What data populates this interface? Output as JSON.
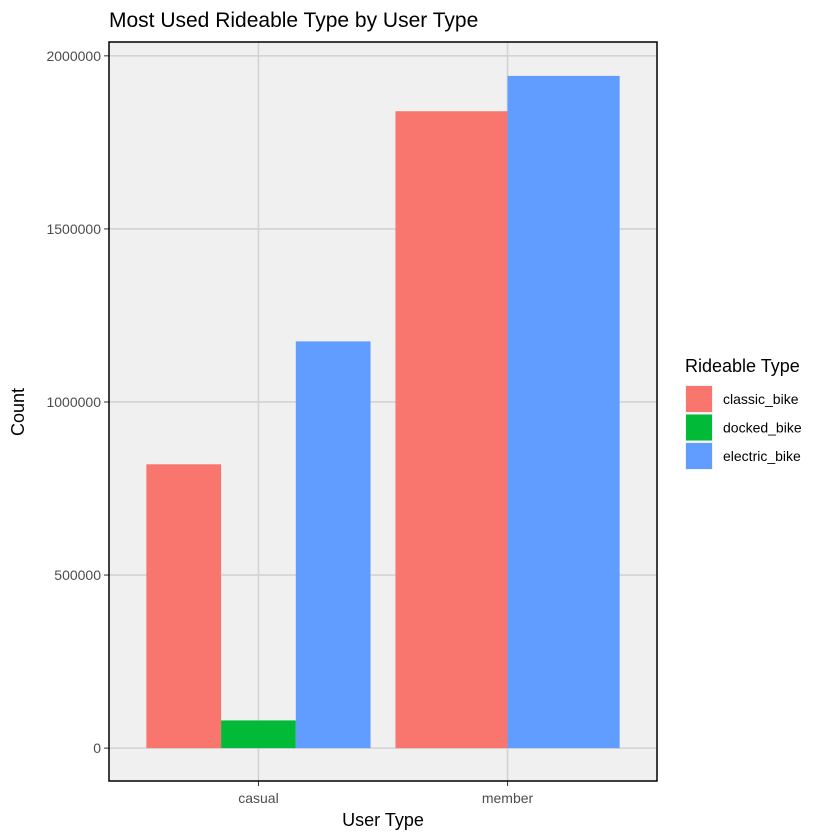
{
  "chart_data": {
    "type": "bar",
    "title": "Most Used Rideable Type by User Type",
    "xlabel": "User Type",
    "ylabel": "Count",
    "categories": [
      "casual",
      "member"
    ],
    "series": [
      {
        "name": "classic_bike",
        "color": "#F8766D",
        "values": [
          820000,
          1840000
        ]
      },
      {
        "name": "docked_bike",
        "color": "#00BA38",
        "values": [
          80000,
          null
        ]
      },
      {
        "name": "electric_bike",
        "color": "#619CFF",
        "values": [
          1175000,
          1942000
        ]
      }
    ],
    "ylim": [
      -95000,
      2040000
    ],
    "yticks": [
      0,
      500000,
      1000000,
      1500000,
      2000000
    ],
    "grid": true,
    "legend": {
      "title": "Rideable Type",
      "position": "right"
    },
    "colors": {
      "panel_background": "#F0F0F0",
      "grid": "#D3D3D3",
      "border": "#000000"
    }
  }
}
